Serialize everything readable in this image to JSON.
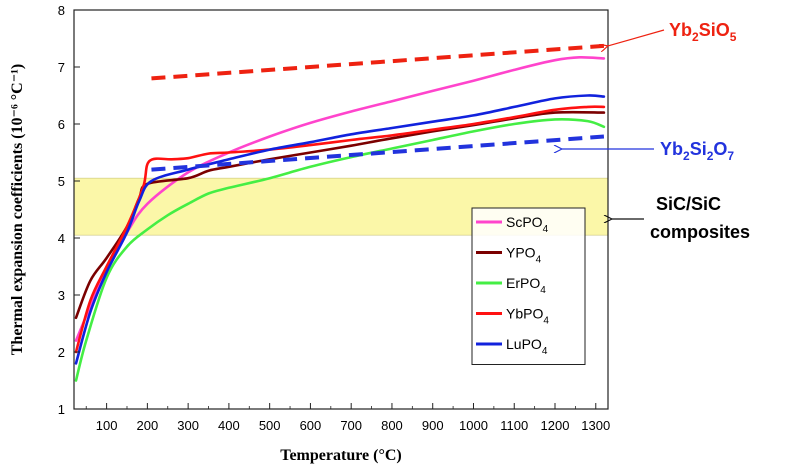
{
  "chart_data": {
    "type": "line",
    "xlabel": "Temperature (°C)",
    "ylabel": "Thermal expansion coefficients (10⁻⁶ °C⁻¹)",
    "xlim": [
      20,
      1330
    ],
    "ylim": [
      1,
      8
    ],
    "xticks": [
      "100",
      "200",
      "300",
      "400",
      "500",
      "600",
      "700",
      "800",
      "900",
      "1000",
      "1100",
      "1200",
      "1300"
    ],
    "yticks": [
      "1",
      "2",
      "3",
      "4",
      "5",
      "6",
      "7",
      "8"
    ],
    "band": {
      "y_range": [
        4.05,
        5.05
      ],
      "color": "#fbf7a8"
    },
    "series": [
      {
        "name": "ScPO4",
        "label": "ScPO",
        "sub": "4",
        "color": "#ff44cc",
        "x": [
          25,
          60,
          100,
          150,
          200,
          300,
          400,
          500,
          600,
          700,
          800,
          900,
          1000,
          1100,
          1200,
          1260,
          1320
        ],
        "y": [
          2.2,
          2.8,
          3.45,
          4.1,
          4.6,
          5.15,
          5.5,
          5.78,
          6.02,
          6.22,
          6.4,
          6.58,
          6.76,
          6.95,
          7.12,
          7.17,
          7.15
        ]
      },
      {
        "name": "YPO4",
        "label": "YPO",
        "sub": "4",
        "color": "#7b0000",
        "x": [
          25,
          60,
          100,
          150,
          180,
          200,
          300,
          350,
          400,
          500,
          600,
          700,
          800,
          900,
          1000,
          1100,
          1200,
          1320
        ],
        "y": [
          2.6,
          3.25,
          3.65,
          4.2,
          4.7,
          4.95,
          5.05,
          5.18,
          5.25,
          5.38,
          5.5,
          5.62,
          5.75,
          5.87,
          5.98,
          6.1,
          6.2,
          6.2
        ]
      },
      {
        "name": "ErPO4",
        "label": "ErPO",
        "sub": "4",
        "color": "#44ee44",
        "x": [
          25,
          50,
          100,
          150,
          200,
          250,
          300,
          350,
          400,
          500,
          600,
          700,
          800,
          900,
          1000,
          1100,
          1200,
          1280,
          1320
        ],
        "y": [
          1.5,
          2.2,
          3.3,
          3.85,
          4.15,
          4.4,
          4.6,
          4.78,
          4.88,
          5.05,
          5.25,
          5.42,
          5.57,
          5.72,
          5.87,
          6.0,
          6.08,
          6.05,
          5.95
        ]
      },
      {
        "name": "YbPO4",
        "label": "YbPO",
        "sub": "4",
        "color": "#ff1111",
        "x": [
          25,
          60,
          100,
          150,
          190,
          205,
          260,
          300,
          350,
          400,
          500,
          600,
          700,
          800,
          900,
          1000,
          1100,
          1200,
          1280,
          1320
        ],
        "y": [
          2.0,
          2.9,
          3.5,
          4.2,
          4.9,
          5.35,
          5.38,
          5.4,
          5.48,
          5.5,
          5.55,
          5.63,
          5.72,
          5.8,
          5.9,
          6.0,
          6.12,
          6.25,
          6.3,
          6.3
        ]
      },
      {
        "name": "LuPO4",
        "label": "LuPO",
        "sub": "4",
        "color": "#1122dd",
        "x": [
          25,
          60,
          100,
          150,
          180,
          210,
          300,
          400,
          500,
          600,
          700,
          800,
          900,
          1000,
          1100,
          1200,
          1280,
          1320
        ],
        "y": [
          1.8,
          2.7,
          3.4,
          4.1,
          4.65,
          5.0,
          5.2,
          5.38,
          5.55,
          5.68,
          5.82,
          5.93,
          6.04,
          6.15,
          6.3,
          6.45,
          6.5,
          6.48
        ]
      }
    ],
    "reference_lines": [
      {
        "name": "Yb2SiO5",
        "color": "#ee2211",
        "x": [
          210,
          1320
        ],
        "y": [
          6.8,
          7.37
        ],
        "label_parts": [
          "Yb",
          "2",
          "SiO",
          "5"
        ]
      },
      {
        "name": "Yb2Si2O7",
        "color": "#2233dd",
        "x": [
          210,
          1320
        ],
        "y": [
          5.2,
          5.78
        ],
        "label_parts": [
          "Yb",
          "2",
          "Si",
          "2",
          "O",
          "7"
        ]
      }
    ],
    "band_label": {
      "line1": "SiC/SiC",
      "line2": "composites"
    }
  }
}
